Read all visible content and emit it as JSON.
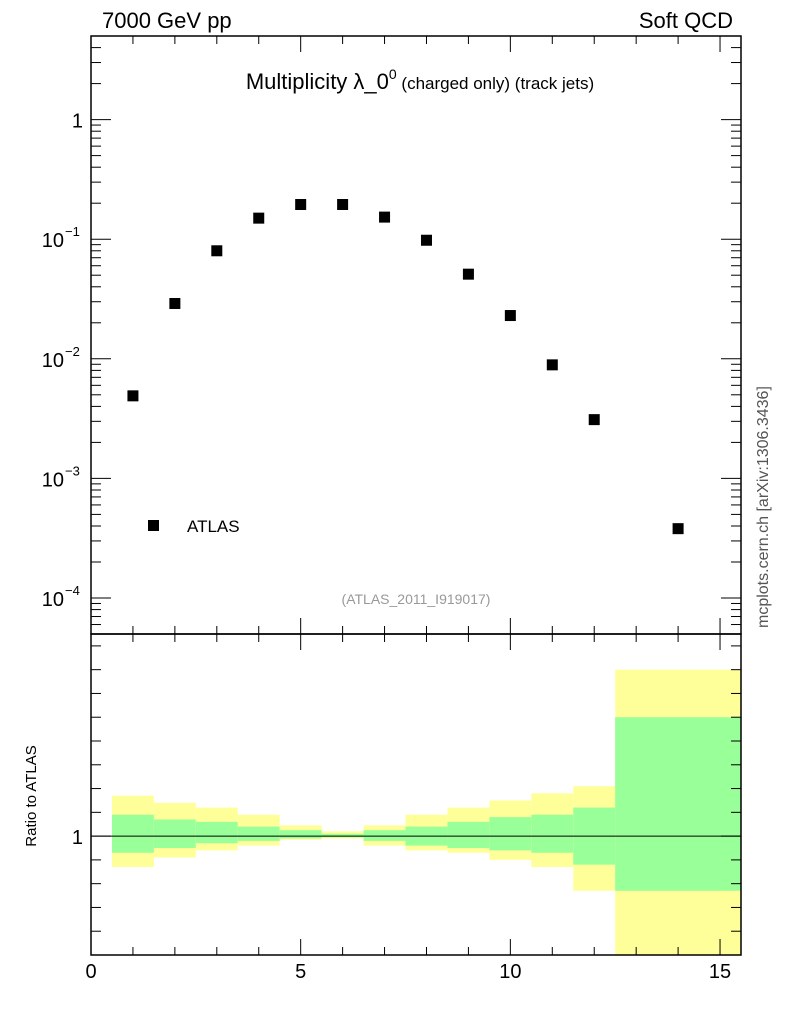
{
  "header": {
    "left": "7000 GeV pp",
    "right": "Soft QCD"
  },
  "side_label": "mcplots.cern.ch [arXiv:1306.3436]",
  "chart_data": [
    {
      "type": "scatter",
      "title": "Multiplicity λ_0",
      "title_sup": "0",
      "title_suffix": " (charged only) (track jets)",
      "watermark": "(ATLAS_2011_I919017)",
      "yscale": "log",
      "ylim": [
        5e-05,
        5
      ],
      "xlim": [
        0,
        15.5
      ],
      "ytick_labels": [
        {
          "value": 1,
          "base": "1",
          "exp": ""
        },
        {
          "value": 0.1,
          "base": "10",
          "exp": "−1"
        },
        {
          "value": 0.01,
          "base": "10",
          "exp": "−2"
        },
        {
          "value": 0.001,
          "base": "10",
          "exp": "−3"
        },
        {
          "value": 0.0001,
          "base": "10",
          "exp": "−4"
        }
      ],
      "legend": {
        "entry": "ATLAS",
        "position": "bottom-left"
      },
      "series": [
        {
          "name": "ATLAS",
          "color": "#000000",
          "x": [
            1,
            2,
            3,
            4,
            5,
            6,
            7,
            8,
            9,
            10,
            11,
            12,
            14
          ],
          "y": [
            0.0049,
            0.029,
            0.08,
            0.15,
            0.195,
            0.195,
            0.153,
            0.098,
            0.051,
            0.023,
            0.0089,
            0.0031,
            0.00038
          ]
        }
      ]
    },
    {
      "type": "area",
      "ylabel": "Ratio to ATLAS",
      "ylim": [
        0.5,
        1.85
      ],
      "xlim": [
        0,
        15.5
      ],
      "yticks": [
        1
      ],
      "xticks": [
        0,
        5,
        10,
        15
      ],
      "band_colors": {
        "outer": "#ffff99",
        "inner": "#99ff99"
      },
      "bins": [
        {
          "x0": 0.5,
          "x1": 1.5,
          "outer": [
            0.87,
            1.17
          ],
          "inner": [
            0.93,
            1.09
          ]
        },
        {
          "x0": 1.5,
          "x1": 2.5,
          "outer": [
            0.91,
            1.14
          ],
          "inner": [
            0.95,
            1.07
          ]
        },
        {
          "x0": 2.5,
          "x1": 3.5,
          "outer": [
            0.94,
            1.12
          ],
          "inner": [
            0.97,
            1.06
          ]
        },
        {
          "x0": 3.5,
          "x1": 4.5,
          "outer": [
            0.96,
            1.09
          ],
          "inner": [
            0.98,
            1.04
          ]
        },
        {
          "x0": 4.5,
          "x1": 5.5,
          "outer": [
            0.985,
            1.045
          ],
          "inner": [
            0.99,
            1.025
          ]
        },
        {
          "x0": 5.5,
          "x1": 6.5,
          "outer": [
            0.99,
            1.02
          ],
          "inner": [
            0.995,
            1.01
          ]
        },
        {
          "x0": 6.5,
          "x1": 7.5,
          "outer": [
            0.96,
            1.045
          ],
          "inner": [
            0.98,
            1.025
          ]
        },
        {
          "x0": 7.5,
          "x1": 8.5,
          "outer": [
            0.94,
            1.09
          ],
          "inner": [
            0.96,
            1.04
          ]
        },
        {
          "x0": 8.5,
          "x1": 9.5,
          "outer": [
            0.93,
            1.12
          ],
          "inner": [
            0.95,
            1.06
          ]
        },
        {
          "x0": 9.5,
          "x1": 10.5,
          "outer": [
            0.9,
            1.15
          ],
          "inner": [
            0.94,
            1.08
          ]
        },
        {
          "x0": 10.5,
          "x1": 11.5,
          "outer": [
            0.87,
            1.18
          ],
          "inner": [
            0.93,
            1.09
          ]
        },
        {
          "x0": 11.5,
          "x1": 12.5,
          "outer": [
            0.77,
            1.21
          ],
          "inner": [
            0.88,
            1.12
          ]
        },
        {
          "x0": 12.5,
          "x1": 15.5,
          "outer": [
            0.5,
            1.7
          ],
          "inner": [
            0.77,
            1.5
          ]
        }
      ]
    }
  ]
}
